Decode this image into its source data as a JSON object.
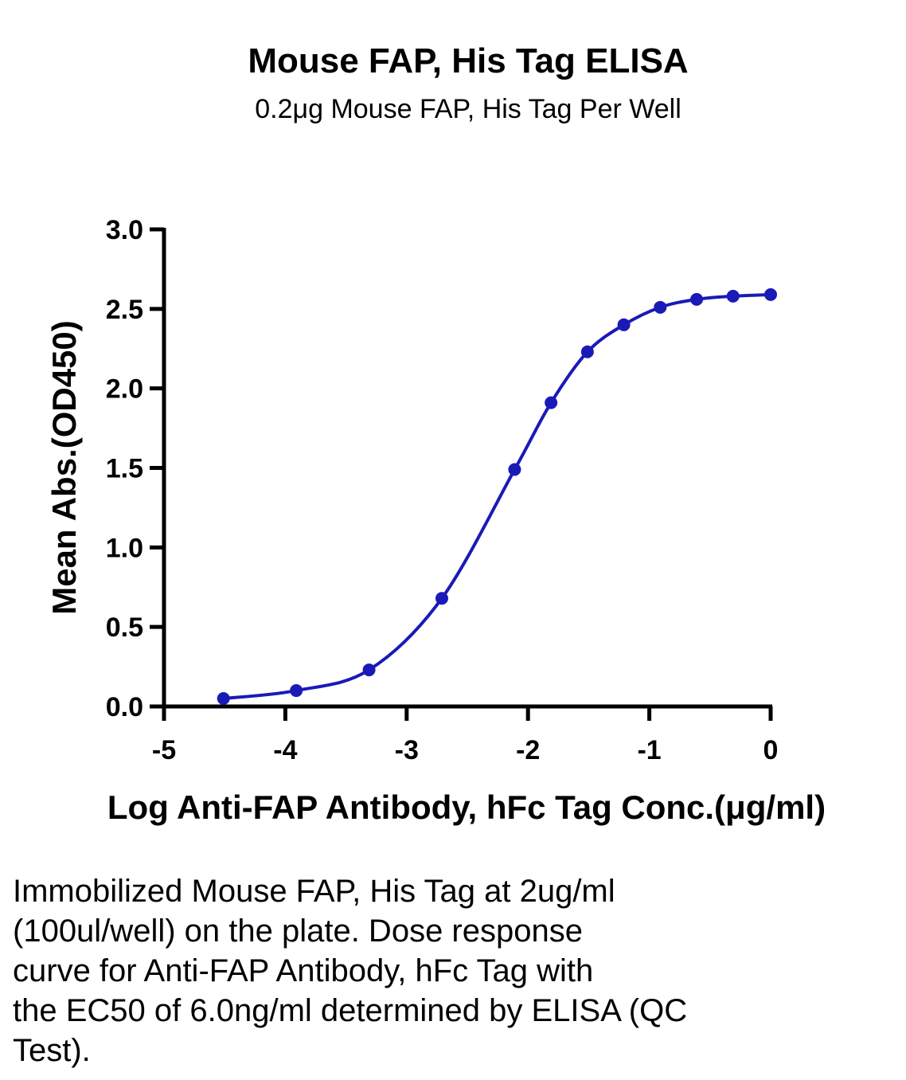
{
  "chart_data": {
    "type": "line",
    "title": "Mouse FAP, His Tag ELISA",
    "subtitle": "0.2μg Mouse FAP, His Tag Per Well",
    "xlabel": "Log Anti-FAP Antibody, hFc Tag Conc.(μg/ml)",
    "ylabel": "Mean Abs.(OD450)",
    "xlim": [
      -5,
      0
    ],
    "ylim": [
      0,
      3
    ],
    "xticks": [
      "-5",
      "-4",
      "-3",
      "-2",
      "-1",
      "0"
    ],
    "yticks": [
      "0.0",
      "0.5",
      "1.0",
      "1.5",
      "2.0",
      "2.5",
      "3.0"
    ],
    "grid": false,
    "color": "#1a1ab8",
    "series": [
      {
        "x": [
          -4.51,
          -3.91,
          -3.31,
          -2.71,
          -2.11,
          -1.81,
          -1.51,
          -1.21,
          -0.91,
          -0.61,
          -0.31,
          0.0
        ],
        "y": [
          0.05,
          0.1,
          0.23,
          0.68,
          1.49,
          1.91,
          2.23,
          2.4,
          2.51,
          2.56,
          2.58,
          2.59
        ]
      }
    ]
  },
  "caption": {
    "lines": [
      "Immobilized Mouse FAP, His Tag at 2ug/ml",
      "(100ul/well) on the plate. Dose response",
      "curve for Anti-FAP Antibody, hFc Tag with",
      "the EC50 of 6.0ng/ml determined by ELISA (QC",
      "Test)."
    ]
  }
}
